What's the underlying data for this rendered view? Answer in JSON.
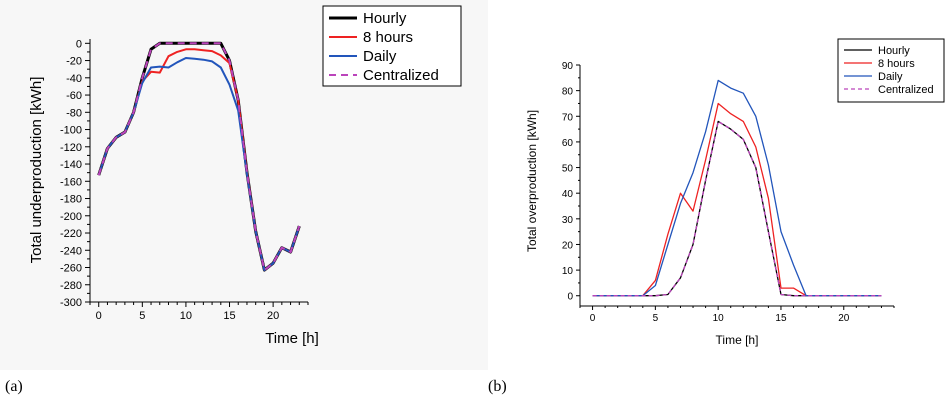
{
  "chart_data": [
    {
      "type": "line",
      "panel_label": "(a)",
      "xlabel": "Time [h]",
      "ylabel": "Total underproduction [kWh]",
      "xlim": [
        -1,
        24
      ],
      "ylim": [
        -300,
        5
      ],
      "xticks": [
        0,
        5,
        10,
        15,
        20
      ],
      "xticks_minor": 1,
      "yticks": [
        0,
        -20,
        -40,
        -60,
        -80,
        -100,
        -120,
        -140,
        -160,
        -180,
        -200,
        -220,
        -240,
        -260,
        -280,
        -300
      ],
      "legend_position": "top-right",
      "x": [
        0,
        1,
        2,
        3,
        4,
        5,
        6,
        7,
        8,
        9,
        10,
        11,
        12,
        13,
        14,
        15,
        16,
        17,
        18,
        19,
        20,
        21,
        22,
        23
      ],
      "series": [
        {
          "name": "Hourly",
          "color": "#000000",
          "dash": "solid",
          "values": [
            -153,
            -122,
            -109,
            -103,
            -80,
            -40,
            -7,
            0,
            0,
            0,
            0,
            0,
            0,
            0,
            0,
            -20,
            -66,
            -150,
            -218,
            -263,
            -255,
            -237,
            -242,
            -212
          ]
        },
        {
          "name": "8 hours",
          "color": "#ee2222",
          "dash": "solid",
          "values": [
            -153,
            -122,
            -109,
            -103,
            -80,
            -44,
            -33,
            -34,
            -15,
            -10,
            -7,
            -7,
            -8,
            -9,
            -14,
            -23,
            -66,
            -150,
            -218,
            -263,
            -255,
            -237,
            -242,
            -212
          ]
        },
        {
          "name": "Daily",
          "color": "#2255bb",
          "dash": "solid",
          "values": [
            -153,
            -122,
            -109,
            -103,
            -80,
            -46,
            -28,
            -27,
            -28,
            -22,
            -17,
            -18,
            -19,
            -21,
            -28,
            -48,
            -78,
            -152,
            -218,
            -263,
            -255,
            -237,
            -242,
            -212
          ]
        },
        {
          "name": "Centralized",
          "color": "#bb44bb",
          "dash": "dashed",
          "values": [
            -153,
            -122,
            -109,
            -103,
            -80,
            -40,
            -7,
            0,
            0,
            0,
            0,
            0,
            0,
            0,
            0,
            -20,
            -66,
            -150,
            -218,
            -263,
            -255,
            -237,
            -242,
            -212
          ]
        }
      ]
    },
    {
      "type": "line",
      "panel_label": "(b)",
      "xlabel": "Time [h]",
      "ylabel": "Total overproduction [kWh]",
      "xlim": [
        -1,
        24
      ],
      "ylim": [
        -4,
        90
      ],
      "xticks": [
        0,
        5,
        10,
        15,
        20
      ],
      "xticks_minor": 1,
      "yticks": [
        0,
        10,
        20,
        30,
        40,
        50,
        60,
        70,
        80,
        90
      ],
      "legend_position": "top-right",
      "x": [
        0,
        1,
        2,
        3,
        4,
        5,
        6,
        7,
        8,
        9,
        10,
        11,
        12,
        13,
        14,
        15,
        16,
        17,
        18,
        19,
        20,
        21,
        22,
        23
      ],
      "series": [
        {
          "name": "Hourly",
          "color": "#000000",
          "dash": "solid",
          "values": [
            0,
            0,
            0,
            0,
            0,
            0,
            0.5,
            7,
            20,
            45,
            68,
            65,
            61,
            50,
            25,
            0.5,
            0,
            0,
            0,
            0,
            0,
            0,
            0,
            0
          ]
        },
        {
          "name": "8 hours",
          "color": "#ee2222",
          "dash": "solid",
          "values": [
            0,
            0,
            0,
            0,
            0,
            6,
            24,
            40,
            33,
            53,
            75,
            71,
            68,
            58,
            38,
            3,
            3,
            0,
            0,
            0,
            0,
            0,
            0,
            0
          ]
        },
        {
          "name": "Daily",
          "color": "#2255bb",
          "dash": "solid",
          "values": [
            0,
            0,
            0,
            0,
            0,
            4,
            20,
            36,
            48,
            64,
            84,
            81,
            79,
            70,
            51,
            25,
            12,
            0,
            0,
            0,
            0,
            0,
            0,
            0
          ]
        },
        {
          "name": "Centralized",
          "color": "#bb44bb",
          "dash": "dashed",
          "values": [
            0,
            0,
            0,
            0,
            0,
            0,
            0.5,
            7,
            20,
            45,
            68,
            65,
            61,
            50,
            25,
            0.5,
            0,
            0,
            0,
            0,
            0,
            0,
            0,
            0
          ]
        }
      ]
    }
  ]
}
